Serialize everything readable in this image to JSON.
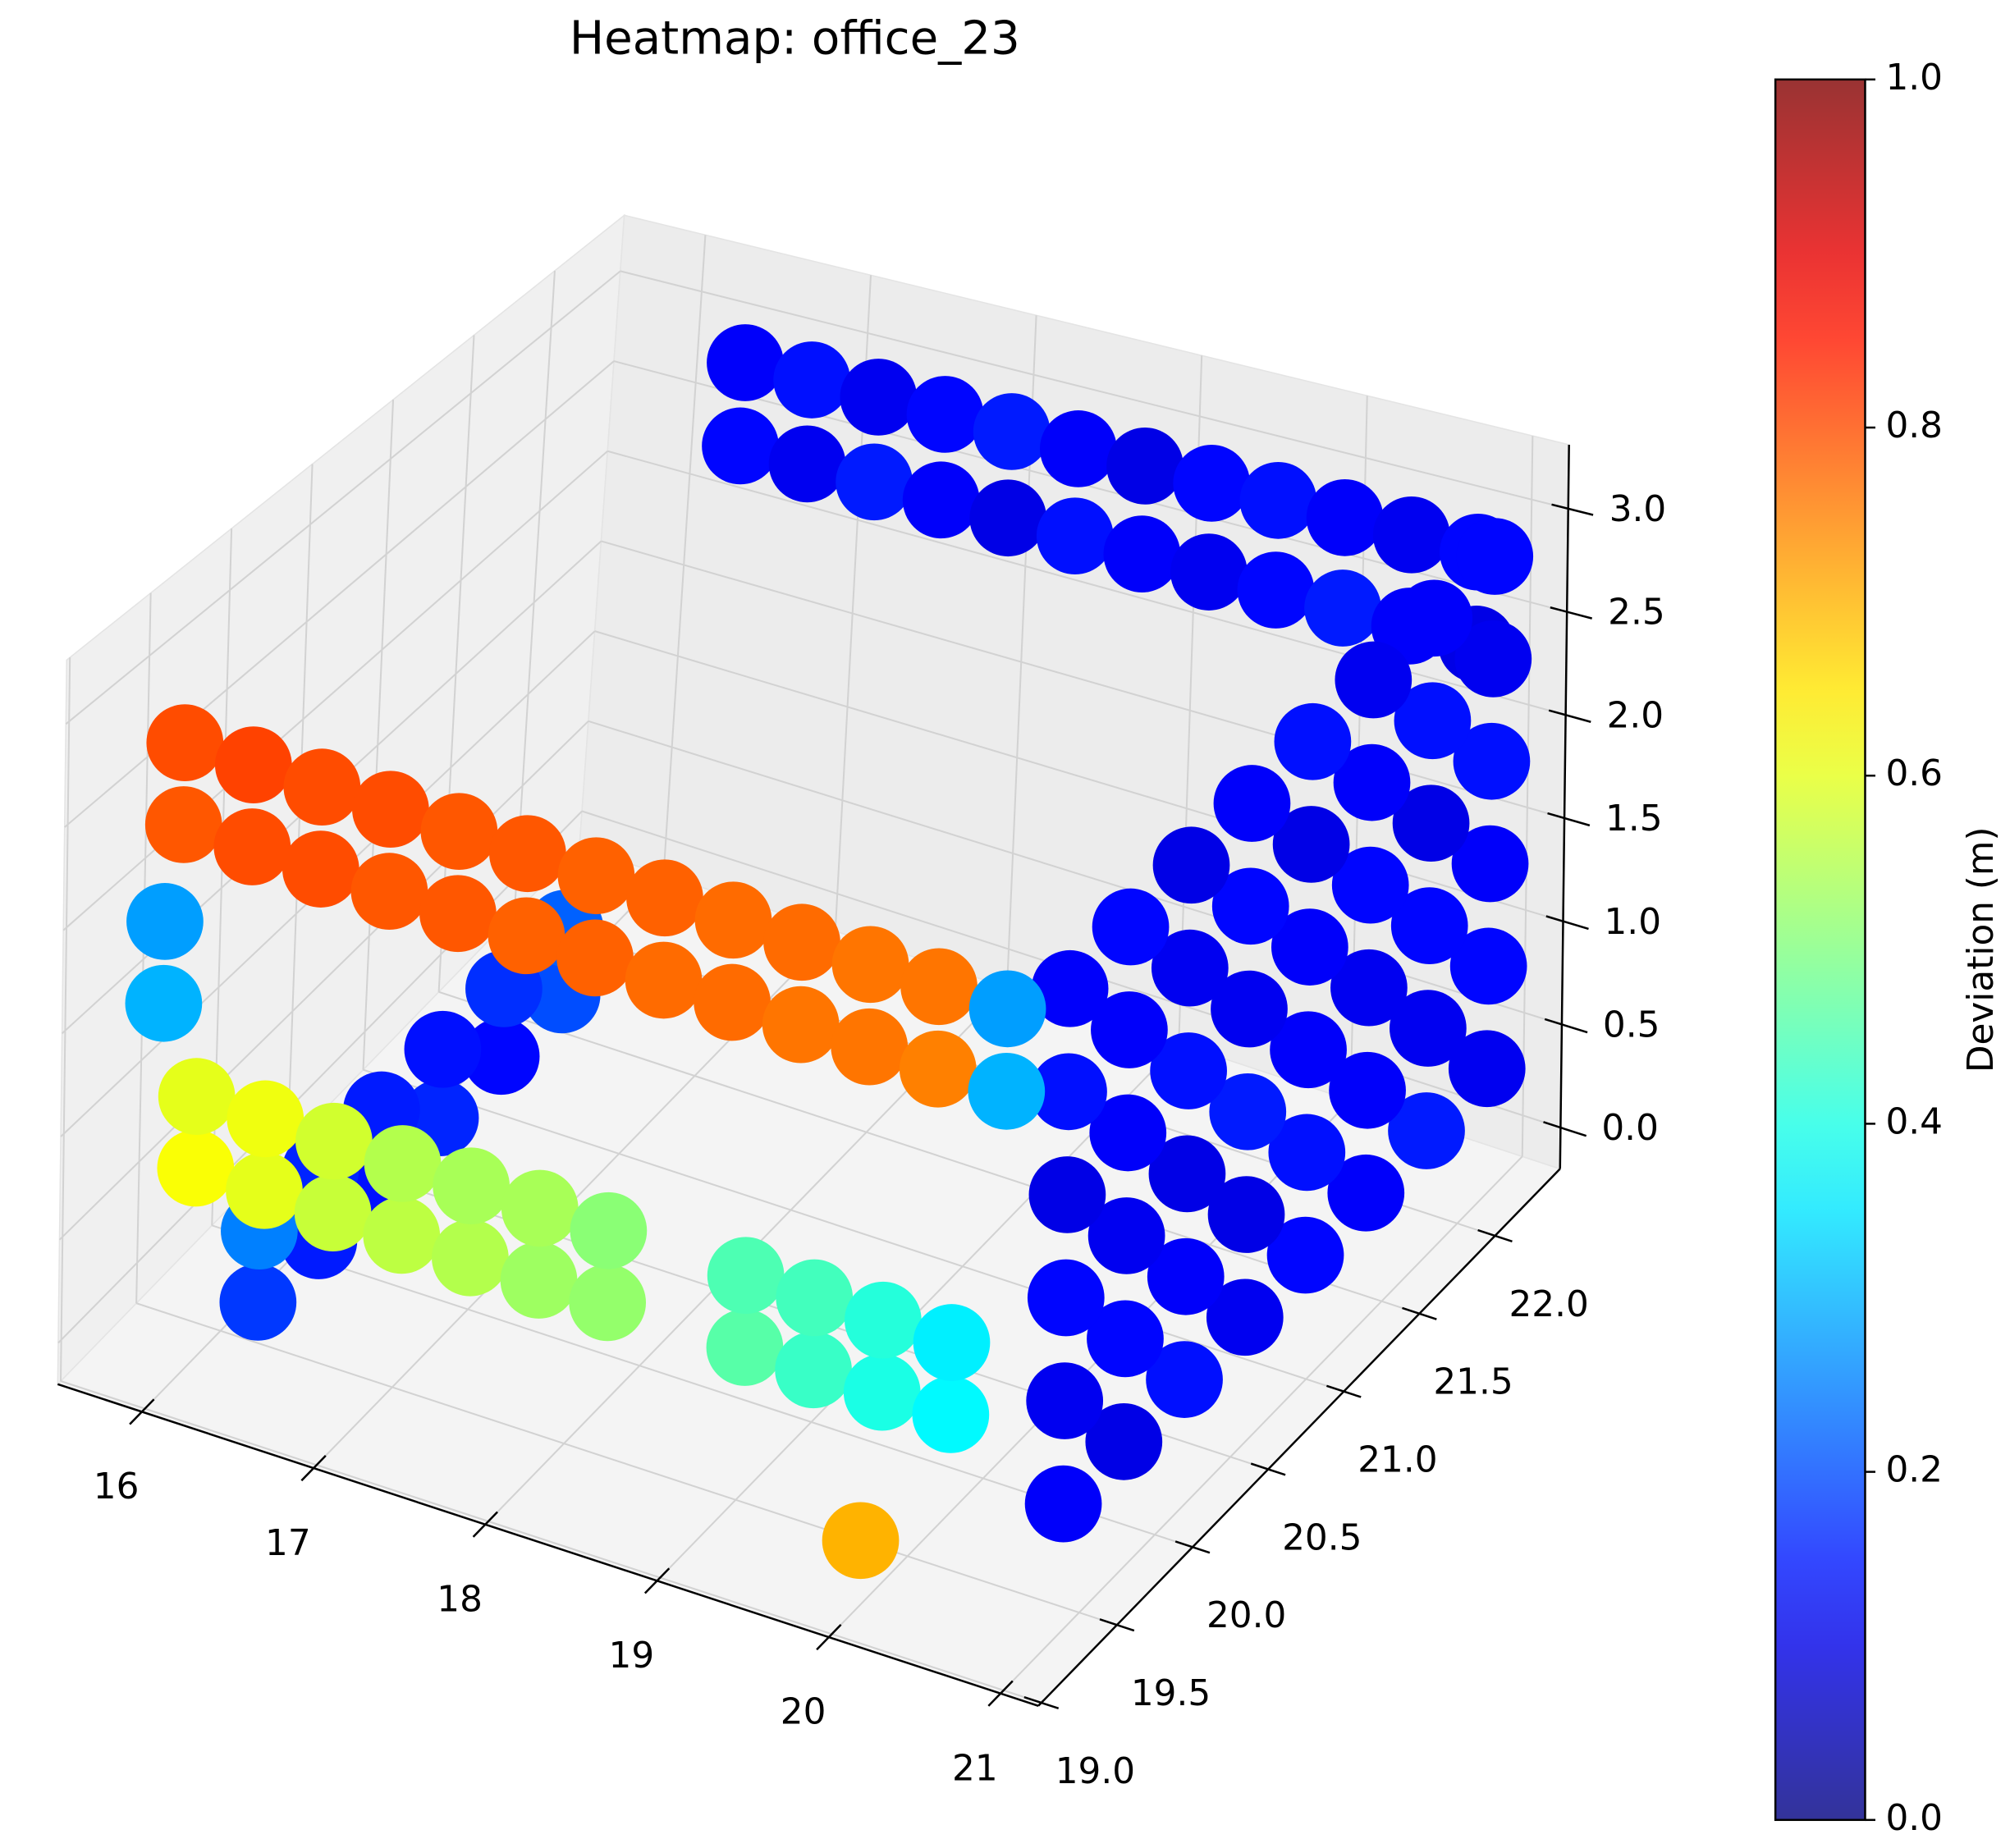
{
  "chart_data": {
    "type": "scatter3d",
    "title": "Heatmap: office_23",
    "colorbar_label": "Deviation (m)",
    "cmap": "jet",
    "grid": true,
    "xlim": [
      15.51,
      21.22
    ],
    "ylim": [
      18.98,
      22.43
    ],
    "zlim": [
      -0.2,
      3.31
    ],
    "clim": [
      0,
      1
    ],
    "xticks": [
      16,
      17,
      18,
      19,
      20,
      21
    ],
    "yticks": [
      {
        "value": 19,
        "label": "19.0"
      },
      19.5,
      {
        "value": 20,
        "label": "20.0"
      },
      20.5,
      {
        "value": 21,
        "label": "21.0"
      },
      21.5,
      {
        "value": 22,
        "label": "22.0"
      }
    ],
    "zticks": [
      {
        "value": 0,
        "label": "0.0"
      },
      0.5,
      {
        "value": 1,
        "label": "1.0"
      },
      1.5,
      {
        "value": 2,
        "label": "2.0"
      },
      2.5,
      {
        "value": 3,
        "label": "3.0"
      }
    ],
    "cticks": [
      {
        "value": 0,
        "label": "0.0"
      },
      0.2,
      0.4,
      0.6,
      0.8,
      {
        "value": 1,
        "label": "1.0"
      }
    ],
    "x": [
      16.4,
      16.8,
      17.2,
      17.6,
      18.0,
      18.4,
      18.8,
      19.2,
      19.6,
      20.0,
      20.4,
      20.8,
      16.4,
      16.8,
      17.2,
      17.6,
      18.0,
      18.4,
      18.8,
      19.2,
      19.6,
      20.0,
      20.4,
      20.8,
      16.3,
      16.3,
      16.3,
      16.3,
      16.3,
      16.3,
      16.3,
      16.3,
      16.3,
      16.3,
      16.3,
      16.3,
      20.9,
      20.9,
      20.9,
      20.9,
      20.9,
      20.9,
      20.9,
      20.9,
      20.9,
      20.9,
      20.9,
      20.9,
      20.9,
      20.9,
      20.9,
      20.9,
      20.9,
      20.9,
      20.9,
      20.9,
      20.9,
      20.9,
      20.9,
      20.9,
      20.9,
      20.9,
      20.9,
      20.9,
      20.9,
      20.9,
      20.9,
      20.9,
      20.9,
      20.9,
      20.9,
      20.9,
      20.9,
      20.9,
      20.9,
      20.9,
      20.9,
      20.9,
      20.9,
      20.9,
      20.9,
      20.9,
      20.9,
      20.9,
      16.1,
      16.5,
      16.9,
      17.3,
      17.7,
      18.1,
      18.5,
      19.3,
      19.7,
      20.1,
      20.5,
      16.1,
      16.5,
      16.9,
      17.3,
      17.7,
      18.1,
      18.5,
      19.3,
      19.7,
      20.1,
      20.5,
      16.0,
      16.4,
      16.8,
      17.2,
      17.6,
      18.0,
      18.4,
      18.8,
      19.2,
      19.6,
      20.0,
      20.4,
      20.8,
      16.0,
      16.4,
      16.8,
      17.2,
      17.6,
      18.0,
      18.4,
      18.8,
      19.2,
      19.6,
      20.0,
      20.4,
      20.8,
      15.9,
      15.9,
      19.9
    ],
    "y": [
      22.3,
      22.3,
      22.3,
      22.3,
      22.3,
      22.3,
      22.3,
      22.3,
      22.3,
      22.3,
      22.3,
      22.3,
      22.3,
      22.3,
      22.3,
      22.3,
      22.3,
      22.3,
      22.3,
      22.3,
      22.3,
      22.3,
      22.3,
      22.3,
      19.4,
      19.8,
      20.2,
      20.6,
      21.0,
      21.4,
      19.4,
      19.8,
      20.2,
      20.6,
      21.0,
      21.4,
      19.5,
      19.9,
      20.3,
      20.7,
      21.1,
      21.5,
      21.9,
      22.3,
      19.5,
      19.9,
      20.3,
      20.7,
      21.1,
      21.5,
      21.9,
      22.3,
      19.5,
      19.9,
      20.3,
      20.7,
      21.1,
      21.5,
      21.9,
      22.3,
      19.5,
      19.9,
      20.3,
      20.7,
      21.1,
      21.5,
      21.9,
      22.3,
      19.5,
      19.9,
      20.3,
      20.7,
      21.1,
      21.5,
      21.9,
      22.3,
      19.5,
      19.9,
      20.3,
      20.7,
      21.1,
      21.5,
      21.9,
      22.3,
      19.2,
      19.2,
      19.2,
      19.2,
      19.2,
      19.2,
      19.2,
      19.2,
      19.2,
      19.2,
      19.2,
      19.2,
      19.2,
      19.2,
      19.2,
      19.2,
      19.2,
      19.2,
      19.2,
      19.2,
      19.2,
      19.2,
      19.2,
      19.2,
      19.2,
      19.2,
      19.2,
      19.2,
      19.2,
      19.2,
      19.2,
      19.2,
      19.2,
      19.2,
      19.2,
      19.2,
      19.2,
      19.2,
      19.2,
      19.2,
      19.2,
      19.2,
      19.2,
      19.2,
      19.2,
      19.2,
      19.2,
      19.2,
      19.2,
      19.2,
      19.3
    ],
    "z": [
      2.8,
      2.8,
      2.8,
      2.8,
      2.8,
      2.8,
      2.8,
      2.8,
      2.8,
      2.8,
      2.8,
      2.8,
      2.35,
      2.35,
      2.35,
      2.35,
      2.35,
      2.35,
      2.35,
      2.35,
      2.35,
      2.35,
      2.35,
      2.35,
      0.1,
      0.1,
      0.1,
      0.1,
      0.1,
      0.1,
      0.45,
      0.45,
      0.45,
      0.45,
      0.45,
      0.45,
      0.3,
      0.3,
      0.3,
      0.3,
      0.3,
      0.3,
      0.3,
      0.3,
      0.8,
      0.8,
      0.8,
      0.8,
      0.8,
      0.8,
      0.8,
      0.8,
      1.3,
      1.3,
      1.3,
      1.3,
      1.3,
      1.3,
      1.3,
      1.3,
      1.8,
      1.8,
      1.8,
      1.8,
      1.8,
      1.8,
      1.8,
      1.8,
      2.3,
      2.3,
      2.3,
      2.3,
      2.3,
      2.3,
      2.3,
      2.3,
      2.8,
      2.8,
      2.8,
      2.8,
      2.8,
      2.8,
      2.8,
      2.8,
      0.85,
      0.85,
      0.85,
      0.85,
      0.85,
      0.85,
      0.85,
      0.85,
      0.85,
      0.85,
      0.85,
      1.2,
      1.2,
      1.2,
      1.2,
      1.2,
      1.2,
      1.2,
      1.2,
      1.2,
      1.2,
      1.2,
      2.5,
      2.5,
      2.5,
      2.5,
      2.5,
      2.5,
      2.5,
      2.5,
      2.5,
      2.5,
      2.5,
      2.5,
      2.5,
      2.9,
      2.9,
      2.9,
      2.9,
      2.9,
      2.9,
      2.9,
      2.9,
      2.9,
      2.9,
      2.9,
      2.9,
      2.9,
      1.6,
      2.0,
      0.0
    ],
    "values": [
      0.12,
      0.14,
      0.11,
      0.13,
      0.15,
      0.12,
      0.1,
      0.13,
      0.14,
      0.12,
      0.11,
      0.13,
      0.13,
      0.11,
      0.15,
      0.12,
      0.1,
      0.14,
      0.12,
      0.11,
      0.13,
      0.15,
      0.12,
      0.1,
      0.18,
      0.15,
      0.14,
      0.16,
      0.13,
      0.2,
      0.25,
      0.16,
      0.15,
      0.14,
      0.17,
      0.22,
      0.12,
      0.1,
      0.14,
      0.11,
      0.13,
      0.12,
      0.15,
      0.11,
      0.11,
      0.13,
      0.12,
      0.1,
      0.14,
      0.12,
      0.11,
      0.13,
      0.13,
      0.11,
      0.1,
      0.15,
      0.12,
      0.11,
      0.13,
      0.12,
      0.1,
      0.12,
      0.14,
      0.11,
      0.12,
      0.13,
      0.1,
      0.14,
      0.14,
      0.12,
      0.11,
      0.13,
      0.1,
      0.12,
      0.14,
      0.11,
      0.12,
      0.13,
      0.1,
      0.12,
      0.14,
      0.11,
      0.12,
      0.13,
      0.62,
      0.6,
      0.57,
      0.56,
      0.55,
      0.53,
      0.52,
      0.46,
      0.43,
      0.4,
      0.37,
      0.6,
      0.61,
      0.58,
      0.55,
      0.54,
      0.54,
      0.51,
      0.45,
      0.44,
      0.41,
      0.36,
      0.79,
      0.8,
      0.8,
      0.79,
      0.79,
      0.78,
      0.78,
      0.77,
      0.77,
      0.76,
      0.76,
      0.75,
      0.3,
      0.8,
      0.81,
      0.8,
      0.8,
      0.79,
      0.79,
      0.78,
      0.78,
      0.77,
      0.77,
      0.76,
      0.76,
      0.28,
      0.3,
      0.28,
      0.7
    ]
  }
}
